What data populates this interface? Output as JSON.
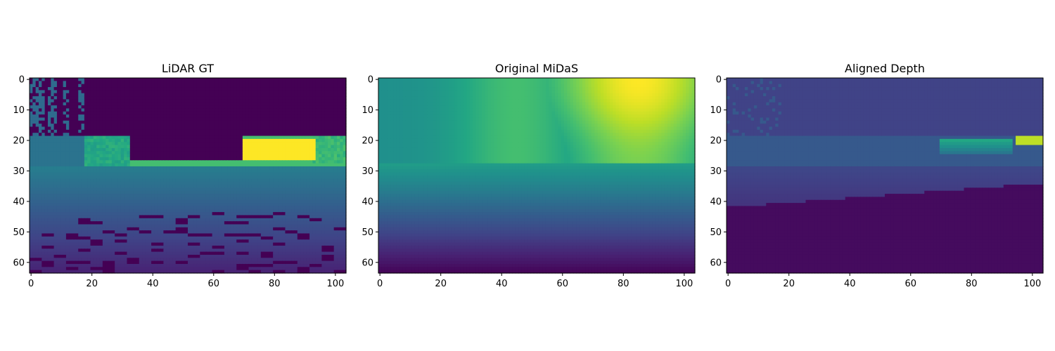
{
  "chart_data": [
    {
      "type": "heatmap",
      "title": "LiDAR GT",
      "colormap": "viridis",
      "x_ticks": [
        0,
        20,
        40,
        60,
        80,
        100
      ],
      "y_ticks": [
        0,
        10,
        20,
        30,
        40,
        50,
        60
      ],
      "xlim": [
        -0.5,
        103.5
      ],
      "ylim": [
        63.5,
        -0.5
      ],
      "grid": false,
      "values_description_rows": [
        {
          "rows": [
            0,
            18
          ],
          "pattern": "sky region = 0 except sparse speckles at left"
        },
        {
          "rows": [
            19,
            28
          ],
          "pattern": "buildings mid-high, yellow region x 70-100"
        },
        {
          "rows": [
            29,
            63
          ],
          "pattern": "decreasing toward bottom with dark scan lines"
        }
      ]
    },
    {
      "type": "heatmap",
      "title": "Original MiDaS",
      "colormap": "viridis",
      "x_ticks": [
        0,
        20,
        40,
        60,
        80,
        100
      ],
      "y_ticks": [
        0,
        10,
        20,
        30,
        40,
        50,
        60
      ],
      "xlim": [
        -0.5,
        103.5
      ],
      "ylim": [
        63.5,
        -0.5
      ],
      "grid": false
    },
    {
      "type": "heatmap",
      "title": "Aligned Depth",
      "colormap": "viridis",
      "x_ticks": [
        0,
        20,
        40,
        60,
        80,
        100
      ],
      "y_ticks": [
        0,
        10,
        20,
        30,
        40,
        50,
        60
      ],
      "xlim": [
        -0.5,
        103.5
      ],
      "ylim": [
        63.5,
        -0.5
      ],
      "grid": false
    }
  ]
}
